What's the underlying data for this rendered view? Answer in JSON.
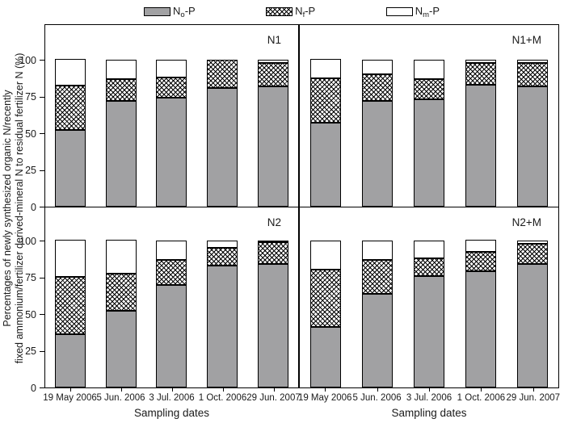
{
  "figure_title": "",
  "legend": [
    {
      "name": "N",
      "sub": "o",
      "suffix": "-P",
      "swatch": "gray"
    },
    {
      "name": "N",
      "sub": "f",
      "suffix": "-P",
      "swatch": "crosshatch"
    },
    {
      "name": "N",
      "sub": "m",
      "suffix": "-P",
      "swatch": "white"
    }
  ],
  "y_axis": {
    "label_line1": "Percentages of newly synthesized organic N/recently",
    "label_line2": "fixed ammonium/fertilizer derived-mineral N to residual fertilizer N (%)"
  },
  "x_axis": {
    "label": "Sampling dates"
  },
  "colors": {
    "bar_gray": "#a1a1a3",
    "hatch": "#000000",
    "bar_white": "#ffffff",
    "border": "#000000",
    "background": "#ffffff"
  },
  "chart_data": {
    "type": "bar",
    "stacked": true,
    "unit": "%",
    "grid": false,
    "legend_position": "top",
    "ylim": [
      0,
      100
    ],
    "y_ticks": [
      0,
      25,
      50,
      75,
      100
    ],
    "xlabel": "Sampling dates",
    "ylabel": "Percentages of newly synthesized organic N/recently fixed ammonium/fertilizer derived-mineral N to residual fertilizer N (%)",
    "categories": [
      "19 May 2006",
      "5 Jun. 2006",
      "3 Jul. 2006",
      "1 Oct. 2006",
      "29 Jun. 2007"
    ],
    "series_names": [
      "No-P",
      "Nf-P",
      "Nm-P"
    ],
    "panels": [
      {
        "label": "N1",
        "series": [
          {
            "name": "No-P",
            "values": [
              52,
              72,
              74,
              81,
              82
            ]
          },
          {
            "name": "Nf-P",
            "values": [
              30,
              15,
              14,
              19,
              16
            ]
          },
          {
            "name": "Nm-P",
            "values": [
              18,
              13,
              12,
              0,
              2
            ]
          }
        ]
      },
      {
        "label": "N1+M",
        "series": [
          {
            "name": "No-P",
            "values": [
              57,
              72,
              73,
              83,
              82
            ]
          },
          {
            "name": "Nf-P",
            "values": [
              30,
              18,
              14,
              15,
              16
            ]
          },
          {
            "name": "Nm-P",
            "values": [
              13,
              10,
              13,
              2,
              2
            ]
          }
        ]
      },
      {
        "label": "N2",
        "series": [
          {
            "name": "No-P",
            "values": [
              36,
              52,
              70,
              83,
              84
            ]
          },
          {
            "name": "Nf-P",
            "values": [
              39,
              25,
              17,
              12,
              15
            ]
          },
          {
            "name": "Nm-P",
            "values": [
              25,
              23,
              13,
              5,
              1
            ]
          }
        ]
      },
      {
        "label": "N2+M",
        "series": [
          {
            "name": "No-P",
            "values": [
              41,
              64,
              76,
              79,
              84
            ]
          },
          {
            "name": "Nf-P",
            "values": [
              39,
              23,
              12,
              13,
              14
            ]
          },
          {
            "name": "Nm-P",
            "values": [
              20,
              13,
              12,
              8,
              2
            ]
          }
        ]
      }
    ]
  }
}
